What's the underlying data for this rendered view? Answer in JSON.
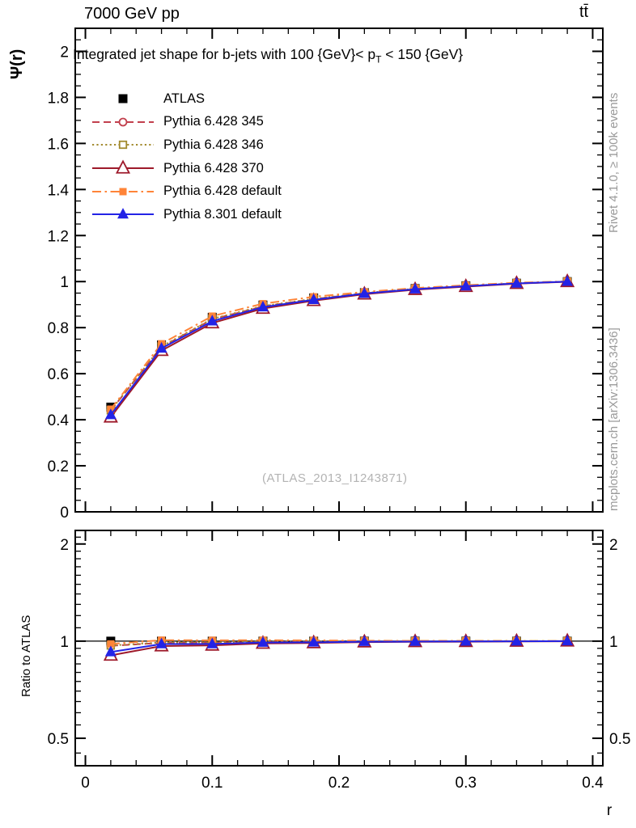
{
  "header": {
    "left": "7000 GeV pp",
    "right": "tt̄"
  },
  "plot": {
    "title_pre": "Integrated jet shape for b-jets with 100 {GeV}< p",
    "title_sub": "T",
    "title_post": " < 150 {GeV}",
    "watermark": "(ATLAS_2013_I1243871)",
    "y_label": "Ψ(r)",
    "ratio_label": "Ratio to ATLAS",
    "x_label": "r"
  },
  "side_notes": {
    "rivet": "Rivet 4.1.0, ≥ 100k events",
    "mcplots": "mcplots.cern.ch [arXiv:1306.3436]"
  },
  "chart_data": {
    "type": "line",
    "title": "Integrated jet shape for b-jets with 100 {GeV}< p_T < 150 {GeV}",
    "x": [
      0.02,
      0.06,
      0.1,
      0.14,
      0.18,
      0.22,
      0.26,
      0.3,
      0.34,
      0.38
    ],
    "series": [
      {
        "name": "ATLAS",
        "color": "#000000",
        "line": "none",
        "marker": "filled-square",
        "marker_size": 11,
        "values": [
          0.455,
          0.725,
          0.845,
          0.898,
          0.929,
          0.952,
          0.97,
          0.982,
          0.993,
          1.0
        ]
      },
      {
        "name": "Pythia 6.428 345",
        "color": "#c2404d",
        "line": "dashed",
        "marker": "open-circle",
        "marker_size": 9,
        "values": [
          0.44,
          0.716,
          0.836,
          0.892,
          0.924,
          0.949,
          0.968,
          0.98,
          0.992,
          1.0
        ]
      },
      {
        "name": "Pythia 6.428 346",
        "color": "#a28a2e",
        "line": "dotted",
        "marker": "open-square",
        "marker_size": 8.5,
        "values": [
          0.441,
          0.718,
          0.838,
          0.894,
          0.925,
          0.95,
          0.969,
          0.981,
          0.993,
          1.0
        ]
      },
      {
        "name": "Pythia 6.428 370",
        "color": "#9e1a2b",
        "line": "solid",
        "marker": "open-triangle",
        "marker_size": 13,
        "values": [
          0.411,
          0.7,
          0.82,
          0.883,
          0.917,
          0.945,
          0.965,
          0.978,
          0.991,
          0.999
        ]
      },
      {
        "name": "Pythia 6.428 default",
        "color": "#ff8438",
        "line": "dashdot",
        "marker": "filled-square",
        "marker_size": 9,
        "values": [
          0.446,
          0.73,
          0.85,
          0.904,
          0.934,
          0.955,
          0.972,
          0.984,
          0.995,
          1.001
        ]
      },
      {
        "name": "Pythia 8.301 default",
        "color": "#2323e6",
        "line": "solid",
        "marker": "filled-triangle",
        "marker_size": 12,
        "values": [
          0.421,
          0.71,
          0.828,
          0.889,
          0.921,
          0.948,
          0.967,
          0.98,
          0.992,
          1.0
        ]
      }
    ],
    "x_axis": {
      "label": "r",
      "min": -0.008,
      "max": 0.408,
      "major": [
        0,
        0.1,
        0.2,
        0.3,
        0.4
      ],
      "major_labels": [
        "0",
        "0.1",
        "0.2",
        "0.3",
        "0.4"
      ],
      "minor_step": 0.02
    },
    "y_axis_main": {
      "label": "Ψ(r)",
      "min": 0,
      "max": 2.1,
      "major": [
        0.2,
        0.4,
        0.6,
        0.8,
        1.0,
        1.2,
        1.4,
        1.6,
        1.8,
        2.0
      ],
      "major_labels": [
        "0.2",
        "0.4",
        "0.6",
        "0.8",
        "1",
        "1.2",
        "1.4",
        "1.6",
        "1.8",
        "2"
      ],
      "zero_label": "0",
      "minor_step": 0.05
    },
    "y_axis_ratio": {
      "label": "Ratio to ATLAS",
      "scale": "log",
      "min": 0.411,
      "max": 2.203,
      "major": [
        0.5,
        1,
        2
      ],
      "major_labels": [
        "0.5",
        "1",
        "2"
      ],
      "minor": [
        0.45,
        0.55,
        0.6,
        0.65,
        0.7,
        0.75,
        0.8,
        0.85,
        0.9,
        0.95,
        1.1,
        1.2,
        1.3,
        1.4,
        1.5,
        1.6,
        1.7,
        1.8,
        1.9,
        2.1,
        2.2
      ],
      "ref_line": 1
    },
    "legend_position": "top-left",
    "grid": false
  }
}
